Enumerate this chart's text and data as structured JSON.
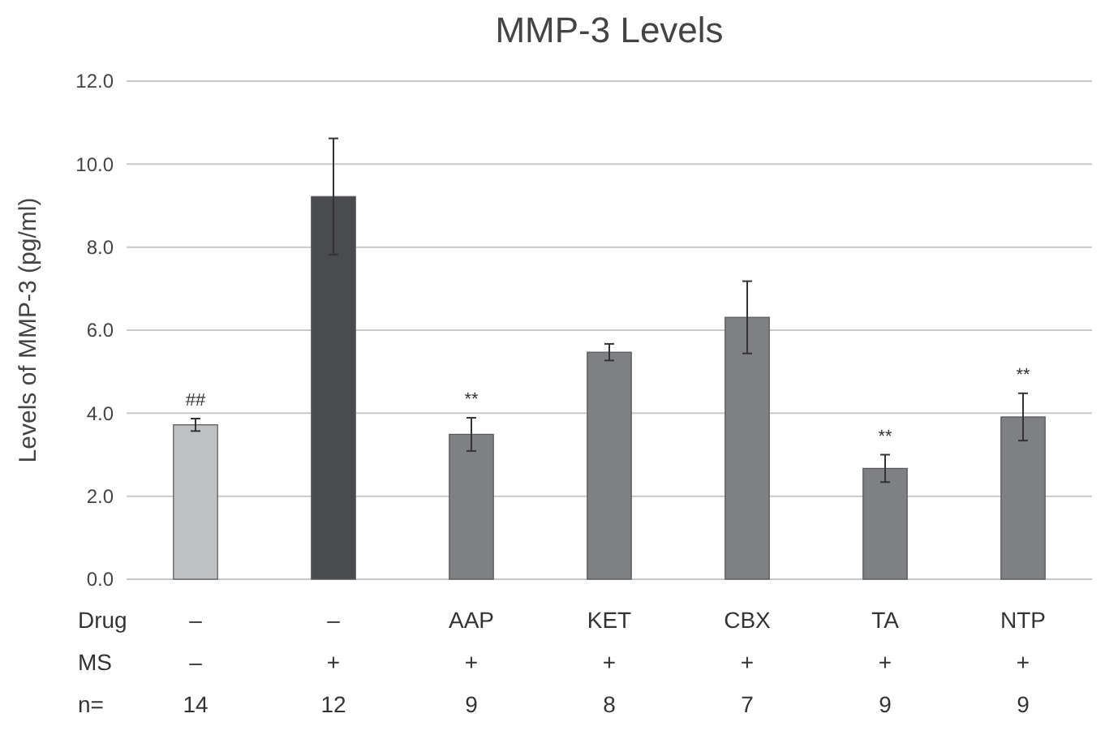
{
  "chart_data": {
    "type": "bar",
    "title": "MMP-3 Levels",
    "ylabel": "Levels of MMP-3 (pg/ml)",
    "categories": [
      "–\n–\n14",
      "–\n+\n12",
      "AAP\n+\n9",
      "KET\n+\n8",
      "CBX\n+\n7",
      "TA\n+\n9",
      "NTP\n+\n9"
    ],
    "values": [
      3.72,
      9.22,
      3.49,
      5.47,
      6.31,
      2.67,
      3.91
    ],
    "errors": [
      0.15,
      1.4,
      0.4,
      0.2,
      0.87,
      0.33,
      0.57
    ],
    "colors": [
      "#bfc0c1",
      "#4a4b4f",
      "#7f8083",
      "#7f8083",
      "#7f8083",
      "#7f8083",
      "#7f8083"
    ],
    "ylim": [
      0,
      12
    ],
    "yticks": [
      {
        "value": 0,
        "label": "0.0"
      },
      {
        "value": 2,
        "label": "2.0"
      },
      {
        "value": 4,
        "label": "4.0"
      },
      {
        "value": 6,
        "label": "6.0"
      },
      {
        "value": 8,
        "label": "8.0"
      },
      {
        "value": 10,
        "label": "10.0"
      },
      {
        "value": 12,
        "label": "12.0"
      }
    ],
    "grid": "y",
    "annotations": [
      "Drug",
      "MS",
      "n=",
      {
        "text": "##",
        "x": "–\n–\n14",
        "y": 3.87
      },
      {
        "text": "**",
        "x": "AAP\n+\n9",
        "y": 3.89
      },
      {
        "text": "**",
        "x": "TA\n+\n9",
        "y": 3.0
      },
      {
        "text": "**",
        "x": "NTP\n+\n9",
        "y": 4.48
      }
    ]
  }
}
